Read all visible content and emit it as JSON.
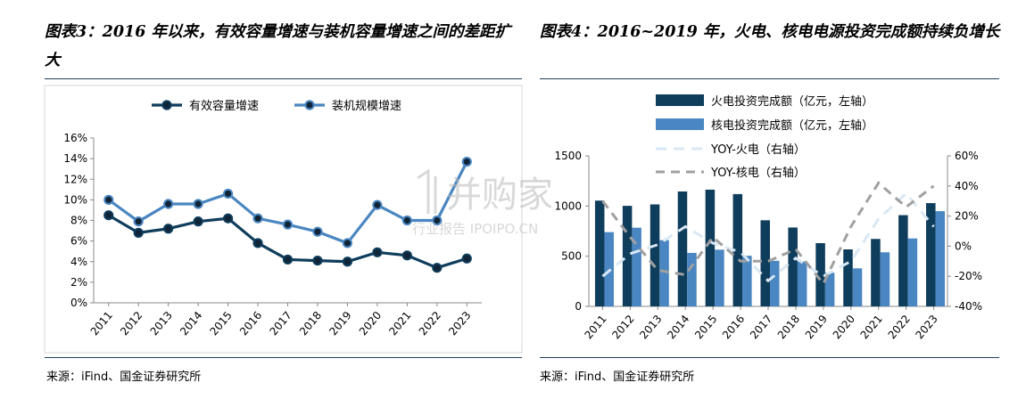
{
  "left": {
    "title": "图表3：2016 年以来，有效容量增速与装机容量增速之间的差距扩大",
    "source": "来源：iFind、国金证券研究所",
    "chart_data": {
      "type": "line",
      "x": [
        "2011",
        "2012",
        "2013",
        "2014",
        "2015",
        "2016",
        "2017",
        "2018",
        "2019",
        "2020",
        "2021",
        "2022",
        "2023"
      ],
      "series": [
        {
          "name": "有效容量增速",
          "values": [
            8.5,
            6.8,
            7.2,
            7.9,
            8.2,
            5.8,
            4.2,
            4.1,
            4.0,
            4.9,
            4.6,
            3.4,
            4.3
          ],
          "color": "#0f3d5c"
        },
        {
          "name": "装机规模增速",
          "values": [
            10.0,
            7.9,
            9.6,
            9.6,
            10.6,
            8.2,
            7.6,
            6.9,
            5.8,
            9.5,
            8.0,
            8.0,
            13.7
          ],
          "color": "#4a86c1"
        }
      ],
      "ylim": [
        0,
        16
      ],
      "yticks": [
        "0%",
        "2%",
        "4%",
        "6%",
        "8%",
        "10%",
        "12%",
        "14%",
        "16%"
      ],
      "grid": false,
      "legend": "top"
    }
  },
  "right": {
    "title": "图表4：2016~2019 年，火电、核电电源投资完成额持续负增长",
    "source": "来源：iFind、国金证券研究所",
    "chart_data": {
      "type": "bar",
      "x": [
        "2011",
        "2012",
        "2013",
        "2014",
        "2015",
        "2016",
        "2017",
        "2018",
        "2019",
        "2020",
        "2021",
        "2022",
        "2023"
      ],
      "series": [
        {
          "name": "火电投资完成额（亿元，左轴）",
          "kind": "bar",
          "axis": "left",
          "color": "#0f3d5c",
          "values": [
            1054,
            1002,
            1016,
            1145,
            1163,
            1119,
            858,
            786,
            630,
            568,
            672,
            909,
            1029
          ]
        },
        {
          "name": "核电投资完成额（亿元，左轴）",
          "kind": "bar",
          "axis": "left",
          "color": "#4a86c1",
          "values": [
            740,
            784,
            660,
            533,
            565,
            504,
            454,
            447,
            335,
            379,
            539,
            677,
            949
          ]
        },
        {
          "name": "YOY-火电（右轴）",
          "kind": "line",
          "axis": "right",
          "color": "#d9e8f4",
          "dash": "12,8",
          "values": [
            -20,
            -5,
            1,
            13,
            2,
            -4,
            -23,
            -8,
            -20,
            -10,
            18,
            35,
            13
          ]
        },
        {
          "name": "YOY-核电（右轴）",
          "kind": "line",
          "axis": "right",
          "color": "#a0a0a0",
          "dash": "10,7",
          "values": [
            30,
            6,
            -16,
            -19,
            6,
            -10,
            -10,
            -2,
            -25,
            13,
            42,
            26,
            40
          ]
        }
      ],
      "ylim_left": [
        0,
        1500
      ],
      "yticks_left": [
        "0",
        "500",
        "1000",
        "1500"
      ],
      "ylim_right": [
        -40,
        60
      ],
      "yticks_right": [
        "-40%",
        "-20%",
        "0%",
        "20%",
        "40%",
        "60%"
      ],
      "grid": false,
      "legend": "top-left"
    }
  },
  "watermark": {
    "main": "并购家",
    "sub": "行业报告 IPOIPO.CN"
  }
}
